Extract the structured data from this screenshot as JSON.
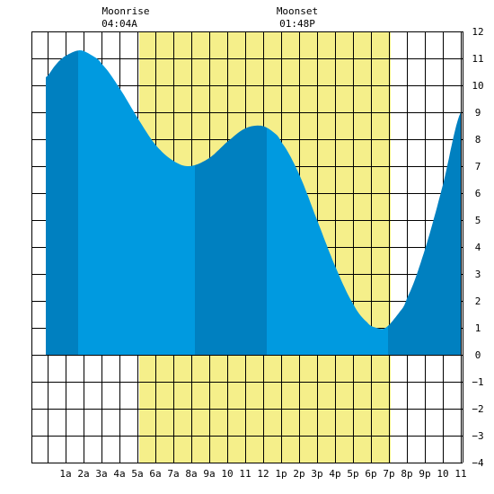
{
  "header": {
    "moonrise_label": "Moonrise",
    "moonrise_time": "04:04A",
    "moonset_label": "Moonset",
    "moonset_time": "01:48P"
  },
  "colors": {
    "background": "#ffffff",
    "daylight": "#f5ef8a",
    "water_light": "#009ae0",
    "water_dark": "#0080c0",
    "grid": "#000000"
  },
  "chart_data": {
    "type": "area",
    "title": "",
    "xlabel": "",
    "ylabel": "",
    "x_unit": "hour of day",
    "xlim": [
      -0.9,
      23.1
    ],
    "ylim": [
      -4,
      12
    ],
    "x_tick_labels": [
      "1a",
      "2a",
      "3a",
      "4a",
      "5a",
      "6a",
      "7a",
      "8a",
      "9a",
      "10",
      "11",
      "12",
      "1p",
      "2p",
      "3p",
      "4p",
      "5p",
      "6p",
      "7p",
      "8p",
      "9p",
      "10",
      "11"
    ],
    "x_tick_hours": [
      1,
      2,
      3,
      4,
      5,
      6,
      7,
      8,
      9,
      10,
      11,
      12,
      13,
      14,
      15,
      16,
      17,
      18,
      19,
      20,
      21,
      22,
      23
    ],
    "y_ticks": [
      12,
      11,
      10,
      9,
      8,
      7,
      6,
      5,
      4,
      3,
      2,
      1,
      0,
      -1,
      -2,
      -3,
      -4
    ],
    "daylight_window": {
      "start_hour": 5.1,
      "end_hour": 19.1
    },
    "tide_extremes": [
      {
        "type": "high",
        "hour": 1.8,
        "height": 11.3
      },
      {
        "type": "low",
        "hour": 7.9,
        "height": 7.0
      },
      {
        "type": "high",
        "hour": 11.9,
        "height": 8.5
      },
      {
        "type": "low",
        "hour": 18.8,
        "height": 1.0
      }
    ],
    "series": [
      {
        "x": [
          -0.1,
          0.5,
          1.0,
          1.8,
          2.5,
          3.0,
          4.0,
          5.0,
          6.0,
          7.0,
          7.9,
          9.0,
          10.0,
          11.0,
          11.9,
          12.5,
          13.0,
          14.0,
          15.0,
          16.0,
          17.0,
          17.8,
          18.3,
          18.8,
          19.5,
          20.0,
          21.0,
          22.0,
          23.0
        ],
        "y": [
          10.3,
          10.8,
          11.1,
          11.3,
          11.1,
          10.8,
          9.9,
          8.8,
          7.8,
          7.2,
          7.0,
          7.3,
          7.9,
          8.4,
          8.5,
          8.3,
          7.9,
          6.7,
          5.0,
          3.3,
          1.9,
          1.2,
          1.0,
          1.0,
          1.5,
          2.1,
          3.9,
          6.3,
          9.0
        ]
      }
    ],
    "shading_bands": [
      {
        "from_hour": -0.1,
        "to_hour": 1.7,
        "shade": "dark"
      },
      {
        "from_hour": 1.7,
        "to_hour": 8.2,
        "shade": "light"
      },
      {
        "from_hour": 8.2,
        "to_hour": 12.2,
        "shade": "dark"
      },
      {
        "from_hour": 12.2,
        "to_hour": 18.95,
        "shade": "light"
      },
      {
        "from_hour": 18.95,
        "to_hour": 23.0,
        "shade": "dark"
      }
    ],
    "grid": true
  }
}
